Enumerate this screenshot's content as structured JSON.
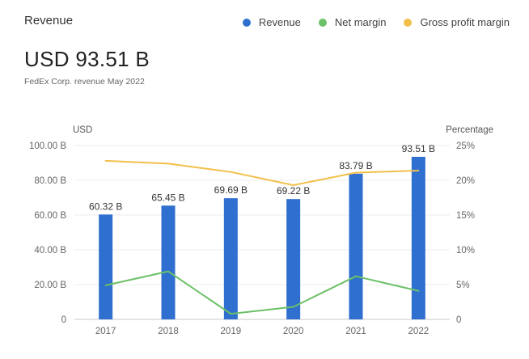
{
  "card": {
    "title": "Revenue",
    "headline": "USD 93.51 B",
    "subtitle": "FedEx Corp. revenue May 2022"
  },
  "legend": [
    {
      "label": "Revenue",
      "color": "#2f6fcf"
    },
    {
      "label": "Net margin",
      "color": "#6cc067"
    },
    {
      "label": "Gross profit margin",
      "color": "#f2c04a"
    }
  ],
  "chart_data": {
    "type": "bar",
    "categories": [
      "2017",
      "2018",
      "2019",
      "2020",
      "2021",
      "2022"
    ],
    "series": [
      {
        "name": "Revenue",
        "type": "bar",
        "axis": "left",
        "values": [
          60.32,
          65.45,
          69.69,
          69.22,
          83.79,
          93.51
        ],
        "color": "#2f6fcf"
      },
      {
        "name": "Net margin",
        "type": "line",
        "axis": "right",
        "values": [
          4.9,
          6.9,
          0.8,
          1.8,
          6.2,
          4.1
        ],
        "color": "#6cc067"
      },
      {
        "name": "Gross profit margin",
        "type": "line",
        "axis": "right",
        "values": [
          22.8,
          22.4,
          21.2,
          19.3,
          21.1,
          21.4
        ],
        "color": "#f2c04a"
      }
    ],
    "bar_labels": [
      "60.32 B",
      "65.45 B",
      "69.69 B",
      "69.22 B",
      "83.79 B",
      "93.51 B"
    ],
    "left_axis": {
      "label": "USD",
      "ylim": [
        0,
        100
      ],
      "ticks": [
        0,
        20,
        40,
        60,
        80,
        100
      ],
      "tick_labels": [
        "0",
        "20.00 B",
        "40.00 B",
        "60.00 B",
        "80.00 B",
        "100.00 B"
      ]
    },
    "right_axis": {
      "label": "Percentage",
      "ylim": [
        0,
        25
      ],
      "ticks": [
        0,
        5,
        10,
        15,
        20,
        25
      ],
      "tick_labels": [
        "0",
        "5%",
        "10%",
        "15%",
        "20%",
        "25%"
      ]
    },
    "grid": true,
    "legend_position": "top-right"
  }
}
